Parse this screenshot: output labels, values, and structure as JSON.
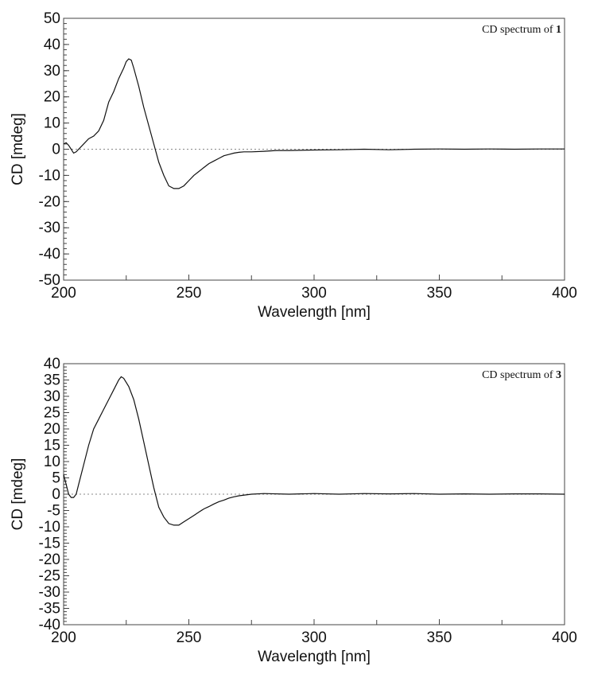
{
  "chart_data": [
    {
      "type": "line",
      "title": "CD spectrum of ",
      "title_bold": "1",
      "xlabel": "Wavelength [nm]",
      "ylabel": "CD [mdeg]",
      "xlim": [
        200,
        400
      ],
      "ylim": [
        -50,
        50
      ],
      "xticks": [
        200,
        250,
        300,
        350,
        400
      ],
      "yticks": [
        50,
        40,
        30,
        20,
        10,
        0,
        -10,
        -20,
        -30,
        -40,
        -50
      ],
      "zero_line": true,
      "series": [
        {
          "x": [
            200,
            201,
            202,
            203,
            204,
            205,
            206,
            208,
            210,
            212,
            214,
            216,
            218,
            220,
            222,
            224,
            225,
            226,
            227,
            228,
            230,
            232,
            234,
            236,
            238,
            240,
            242,
            244,
            246,
            248,
            250,
            252,
            254,
            256,
            258,
            260,
            262,
            264,
            266,
            268,
            270,
            272,
            275,
            280,
            285,
            290,
            300,
            310,
            320,
            330,
            340,
            350,
            360,
            370,
            380,
            390,
            400
          ],
          "y": [
            2,
            2.5,
            1.5,
            0,
            -1.5,
            -1,
            0,
            2,
            4,
            5,
            7,
            11,
            18,
            22,
            27,
            31,
            33.5,
            34.5,
            34,
            31,
            24,
            16,
            9,
            2,
            -5,
            -10,
            -14,
            -15,
            -15,
            -14,
            -12,
            -10,
            -8.5,
            -7,
            -5.5,
            -4.5,
            -3.5,
            -2.5,
            -2,
            -1.5,
            -1.2,
            -1,
            -1,
            -0.8,
            -0.5,
            -0.5,
            -0.3,
            -0.2,
            0,
            -0.2,
            0,
            0.1,
            0,
            0.1,
            0,
            0.1,
            0.1
          ]
        }
      ]
    },
    {
      "type": "line",
      "title": "CD spectrum of ",
      "title_bold": "3",
      "xlabel": "Wavelength [nm]",
      "ylabel": "CD [mdeg]",
      "xlim": [
        200,
        400
      ],
      "ylim": [
        -40,
        40
      ],
      "xticks": [
        200,
        250,
        300,
        350,
        400
      ],
      "yticks": [
        40,
        35,
        30,
        25,
        20,
        15,
        10,
        5,
        0,
        -5,
        -10,
        -15,
        -20,
        -25,
        -30,
        -35,
        -40
      ],
      "zero_line": true,
      "series": [
        {
          "x": [
            200,
            201,
            202,
            203,
            204,
            205,
            206,
            208,
            210,
            212,
            214,
            216,
            218,
            220,
            222,
            223,
            224,
            226,
            228,
            230,
            232,
            234,
            236,
            238,
            240,
            242,
            244,
            246,
            248,
            250,
            252,
            254,
            256,
            258,
            260,
            262,
            264,
            266,
            268,
            270,
            275,
            280,
            290,
            300,
            310,
            320,
            330,
            340,
            350,
            360,
            370,
            380,
            390,
            400
          ],
          "y": [
            6,
            3,
            0,
            -1,
            -1,
            0,
            3,
            9,
            15,
            20,
            23,
            26,
            29,
            32,
            35,
            36,
            35.5,
            33,
            29,
            23,
            16,
            9,
            2,
            -4,
            -7,
            -9,
            -9.5,
            -9.5,
            -8.5,
            -7.5,
            -6.5,
            -5.5,
            -4.5,
            -3.8,
            -3,
            -2.3,
            -1.8,
            -1.2,
            -0.8,
            -0.5,
            0,
            0.2,
            0,
            0.2,
            0,
            0.2,
            0.1,
            0.2,
            0,
            0.1,
            0,
            0.1,
            0.1,
            0
          ]
        }
      ]
    }
  ]
}
